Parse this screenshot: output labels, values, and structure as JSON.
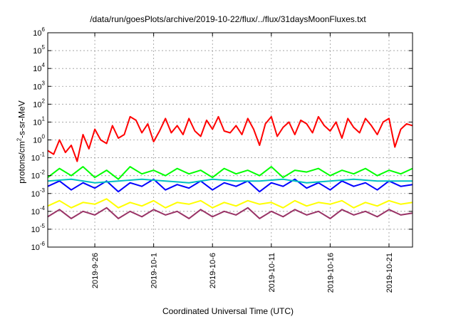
{
  "chart_data": {
    "type": "line",
    "title": "/data/run/goesPlots/archive/2019-10-22/flux/../flux/31daysMoonFluxes.txt",
    "xlabel": "Coordinated Universal Time (UTC)",
    "ylabel": {
      "pre": "protons/cm",
      "sup": "2",
      "post": "-s-sr-MeV"
    },
    "yscale": "log",
    "ylim_exp": [
      -6,
      6
    ],
    "yticks": [
      {
        "base": "10",
        "exp": "-6",
        "e": -6
      },
      {
        "base": "10",
        "exp": "-5",
        "e": -5
      },
      {
        "base": "10",
        "exp": "-4",
        "e": -4
      },
      {
        "base": "10",
        "exp": "-3",
        "e": -3
      },
      {
        "base": "10",
        "exp": "-2",
        "e": -2
      },
      {
        "base": "10",
        "exp": "-1",
        "e": -1
      },
      {
        "base": "10",
        "exp": "0",
        "e": 0
      },
      {
        "base": "10",
        "exp": "1",
        "e": 1
      },
      {
        "base": "10",
        "exp": "2",
        "e": 2
      },
      {
        "base": "10",
        "exp": "3",
        "e": 3
      },
      {
        "base": "10",
        "exp": "4",
        "e": 4
      },
      {
        "base": "10",
        "exp": "5",
        "e": 5
      },
      {
        "base": "10",
        "exp": "6",
        "e": 6
      }
    ],
    "xlim_days": [
      0,
      31
    ],
    "xticks": [
      {
        "label": "2019-9-26",
        "day": 4
      },
      {
        "label": "2019-10-1",
        "day": 9
      },
      {
        "label": "2019-10-6",
        "day": 14
      },
      {
        "label": "2019-10-11",
        "day": 19
      },
      {
        "label": "2019-10-16",
        "day": 24
      },
      {
        "label": "2019-10-21",
        "day": 29
      }
    ],
    "grid": true,
    "series": [
      {
        "color": "#ff0000",
        "day": [
          0,
          0.5,
          1,
          1.5,
          2,
          2.5,
          3,
          3.5,
          4,
          4.5,
          5,
          5.5,
          6,
          6.5,
          7,
          7.5,
          8,
          8.5,
          9,
          9.5,
          10,
          10.5,
          11,
          11.5,
          12,
          12.5,
          13,
          13.5,
          14,
          14.5,
          15,
          15.5,
          16,
          16.5,
          17,
          17.5,
          18,
          18.5,
          19,
          19.5,
          20,
          20.5,
          21,
          21.5,
          22,
          22.5,
          23,
          23.5,
          24,
          24.5,
          25,
          25.5,
          26,
          26.5,
          27,
          27.5,
          28,
          28.5,
          29,
          29.5,
          30,
          30.5,
          31
        ],
        "log10": [
          -0.6,
          -0.8,
          0,
          -0.7,
          -0.3,
          -1.2,
          0.3,
          -0.5,
          0.6,
          0,
          -0.2,
          0.8,
          0.1,
          0.3,
          1.3,
          1.1,
          0.4,
          0.9,
          -0.1,
          0.5,
          1.2,
          0.4,
          0.8,
          0.3,
          1.2,
          0.5,
          0.2,
          1.1,
          0.6,
          1.3,
          0.5,
          0.4,
          0.8,
          0.3,
          1.2,
          0.6,
          -0.3,
          0.9,
          1.3,
          0.2,
          0.7,
          1.0,
          0.3,
          1.1,
          0.9,
          0.4,
          1.3,
          0.8,
          0.5,
          1.0,
          0.1,
          1.2,
          0.7,
          0.4,
          1.2,
          0.8,
          0.3,
          1.0,
          1.2,
          -0.4,
          0.6,
          0.9,
          0.8
        ]
      },
      {
        "color": "#00ff00",
        "day": [
          0,
          1,
          2,
          3,
          4,
          5,
          6,
          7,
          8,
          9,
          10,
          11,
          12,
          13,
          14,
          15,
          16,
          17,
          18,
          19,
          20,
          21,
          22,
          23,
          24,
          25,
          26,
          27,
          28,
          29,
          30,
          31
        ],
        "log10": [
          -2.1,
          -1.6,
          -2.0,
          -1.5,
          -2.1,
          -1.7,
          -2.2,
          -1.5,
          -1.9,
          -1.7,
          -2.0,
          -1.6,
          -1.9,
          -1.7,
          -2.1,
          -1.6,
          -1.9,
          -1.7,
          -2.0,
          -1.5,
          -2.1,
          -1.7,
          -1.8,
          -1.6,
          -2.0,
          -1.7,
          -1.9,
          -1.6,
          -2.0,
          -1.7,
          -1.9,
          -1.6
        ]
      },
      {
        "color": "#0000ff",
        "day": [
          0,
          1,
          2,
          3,
          4,
          5,
          6,
          7,
          8,
          9,
          10,
          11,
          12,
          13,
          14,
          15,
          16,
          17,
          18,
          19,
          20,
          21,
          22,
          23,
          24,
          25,
          26,
          27,
          28,
          29,
          30,
          31
        ],
        "log10": [
          -2.6,
          -2.3,
          -2.8,
          -2.4,
          -2.7,
          -2.3,
          -2.9,
          -2.4,
          -2.6,
          -2.2,
          -2.8,
          -2.5,
          -2.7,
          -2.3,
          -2.8,
          -2.4,
          -2.6,
          -2.3,
          -2.9,
          -2.4,
          -2.6,
          -2.2,
          -2.7,
          -2.4,
          -2.8,
          -2.3,
          -2.6,
          -2.4,
          -2.8,
          -2.3,
          -2.6,
          -2.5
        ]
      },
      {
        "color": "#00c0c0",
        "day": [
          0,
          2,
          4,
          6,
          8,
          10,
          12,
          14,
          16,
          18,
          20,
          22,
          24,
          26,
          28,
          30,
          31
        ],
        "log10": [
          -2.3,
          -2.2,
          -2.4,
          -2.3,
          -2.2,
          -2.3,
          -2.4,
          -2.2,
          -2.3,
          -2.3,
          -2.2,
          -2.4,
          -2.3,
          -2.2,
          -2.3,
          -2.3,
          -2.3
        ]
      },
      {
        "color": "#ffff00",
        "day": [
          0,
          1,
          2,
          3,
          4,
          5,
          6,
          7,
          8,
          9,
          10,
          11,
          12,
          13,
          14,
          15,
          16,
          17,
          18,
          19,
          20,
          21,
          22,
          23,
          24,
          25,
          26,
          27,
          28,
          29,
          30,
          31
        ],
        "log10": [
          -3.7,
          -3.4,
          -3.8,
          -3.5,
          -3.6,
          -3.3,
          -3.8,
          -3.5,
          -3.7,
          -3.4,
          -3.8,
          -3.5,
          -3.6,
          -3.4,
          -3.8,
          -3.5,
          -3.7,
          -3.4,
          -3.6,
          -3.5,
          -3.8,
          -3.4,
          -3.7,
          -3.5,
          -3.6,
          -3.4,
          -3.8,
          -3.5,
          -3.7,
          -3.4,
          -3.6,
          -3.5
        ]
      },
      {
        "color": "#993366",
        "day": [
          0,
          1,
          2,
          3,
          4,
          5,
          6,
          7,
          8,
          9,
          10,
          11,
          12,
          13,
          14,
          15,
          16,
          17,
          18,
          19,
          20,
          21,
          22,
          23,
          24,
          25,
          26,
          27,
          28,
          29,
          30,
          31
        ],
        "log10": [
          -4.3,
          -3.9,
          -4.4,
          -4.0,
          -4.2,
          -3.8,
          -4.4,
          -4.0,
          -4.3,
          -3.9,
          -4.2,
          -4.0,
          -4.4,
          -3.9,
          -4.3,
          -4.0,
          -4.2,
          -3.8,
          -4.4,
          -4.0,
          -4.3,
          -3.9,
          -4.2,
          -4.0,
          -4.4,
          -3.9,
          -4.2,
          -4.0,
          -4.3,
          -3.9,
          -4.2,
          -4.1
        ]
      }
    ]
  }
}
